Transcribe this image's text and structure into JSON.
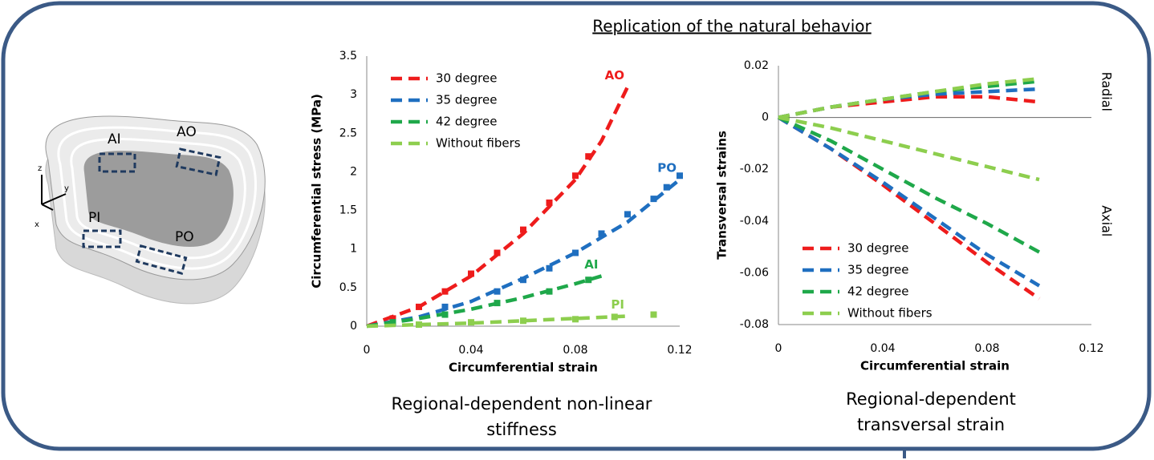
{
  "header": "Replication of the natural behavior",
  "diagram": {
    "labels": [
      "AI",
      "AO",
      "PI",
      "PO"
    ],
    "axes": [
      "z",
      "y",
      "x"
    ]
  },
  "chart_data": [
    {
      "type": "line",
      "caption": "Regional-dependent non-linear stiffness",
      "x_label": "Circumferential strain",
      "y_label": "Circumferential stress (MPa)",
      "xlim": [
        0,
        0.12
      ],
      "xticks": [
        0,
        0.04,
        0.08,
        0.12
      ],
      "ylim": [
        0,
        3.5
      ],
      "yticks": [
        0,
        0.5,
        1,
        1.5,
        2,
        2.5,
        3,
        3.5
      ],
      "legend": "top-left",
      "series": [
        {
          "name": "30 degree",
          "color": "#ee1c1c",
          "label": "AO",
          "x": [
            0,
            0.02,
            0.04,
            0.06,
            0.08,
            0.09,
            0.1
          ],
          "values": [
            0,
            0.25,
            0.65,
            1.2,
            1.9,
            2.4,
            3.1
          ],
          "markers": {
            "x": [
              0.01,
              0.02,
              0.03,
              0.04,
              0.05,
              0.06,
              0.07,
              0.08,
              0.085
            ],
            "values": [
              0.1,
              0.25,
              0.45,
              0.68,
              0.95,
              1.25,
              1.6,
              1.95,
              2.2
            ]
          }
        },
        {
          "name": "35 degree",
          "color": "#1f6fc0",
          "label": "PO",
          "x": [
            0,
            0.02,
            0.04,
            0.06,
            0.08,
            0.1,
            0.12
          ],
          "values": [
            0,
            0.12,
            0.32,
            0.62,
            0.95,
            1.35,
            1.9
          ],
          "markers": {
            "x": [
              0.01,
              0.03,
              0.05,
              0.06,
              0.07,
              0.08,
              0.09,
              0.1,
              0.11,
              0.115,
              0.12
            ],
            "values": [
              0.05,
              0.25,
              0.45,
              0.6,
              0.75,
              0.95,
              1.2,
              1.45,
              1.65,
              1.8,
              1.95
            ]
          }
        },
        {
          "name": "42 degree",
          "color": "#1fa84a",
          "label": "AI",
          "x": [
            0,
            0.02,
            0.04,
            0.06,
            0.08,
            0.09
          ],
          "values": [
            0,
            0.1,
            0.22,
            0.37,
            0.55,
            0.65
          ],
          "markers": {
            "x": [
              0.01,
              0.03,
              0.05,
              0.07,
              0.085
            ],
            "values": [
              0.05,
              0.15,
              0.3,
              0.45,
              0.6
            ]
          }
        },
        {
          "name": "Without fibers",
          "color": "#8dce4e",
          "label": "PI",
          "x": [
            0,
            0.02,
            0.04,
            0.06,
            0.08,
            0.1
          ],
          "values": [
            0,
            0.02,
            0.04,
            0.07,
            0.1,
            0.13
          ],
          "markers": {
            "x": [
              0.02,
              0.04,
              0.06,
              0.08,
              0.095,
              0.11
            ],
            "values": [
              0.02,
              0.05,
              0.07,
              0.09,
              0.12,
              0.15
            ]
          }
        }
      ]
    },
    {
      "type": "line",
      "caption": "Regional-dependent transversal strain",
      "x_label": "Circumferential strain",
      "y_label": "Transversal strains",
      "xlim": [
        0,
        0.12
      ],
      "xticks": [
        0,
        0.04,
        0.08,
        0.12
      ],
      "ylim": [
        -0.08,
        0.02
      ],
      "yticks": [
        -0.08,
        -0.06,
        -0.04,
        -0.02,
        0,
        0.02
      ],
      "zero_line": true,
      "side_labels": [
        "Radial",
        "Axial"
      ],
      "legend": "bottom-left",
      "series": [
        {
          "name": "30 degree",
          "color": "#ee1c1c",
          "x": [
            0,
            0.02,
            0.04,
            0.06,
            0.08,
            0.1
          ],
          "values": [
            0,
            -0.012,
            -0.026,
            -0.041,
            -0.056,
            -0.07
          ],
          "radial_values": [
            0,
            0.004,
            0.006,
            0.008,
            0.008,
            0.006
          ]
        },
        {
          "name": "35 degree",
          "color": "#1f6fc0",
          "x": [
            0,
            0.02,
            0.04,
            0.06,
            0.08,
            0.1
          ],
          "values": [
            0,
            -0.012,
            -0.025,
            -0.039,
            -0.053,
            -0.065
          ],
          "radial_values": [
            0,
            0.004,
            0.007,
            0.009,
            0.01,
            0.011
          ]
        },
        {
          "name": "42 degree",
          "color": "#1fa84a",
          "x": [
            0,
            0.02,
            0.04,
            0.06,
            0.08,
            0.1
          ],
          "values": [
            0,
            -0.009,
            -0.02,
            -0.031,
            -0.041,
            -0.052
          ],
          "radial_values": [
            0,
            0.004,
            0.007,
            0.01,
            0.012,
            0.014
          ]
        },
        {
          "name": "Without fibers",
          "color": "#8dce4e",
          "x": [
            0,
            0.02,
            0.04,
            0.06,
            0.08,
            0.1
          ],
          "values": [
            0,
            -0.004,
            -0.009,
            -0.014,
            -0.019,
            -0.024
          ],
          "radial_values": [
            0,
            0.004,
            0.007,
            0.01,
            0.013,
            0.015
          ]
        }
      ]
    }
  ]
}
